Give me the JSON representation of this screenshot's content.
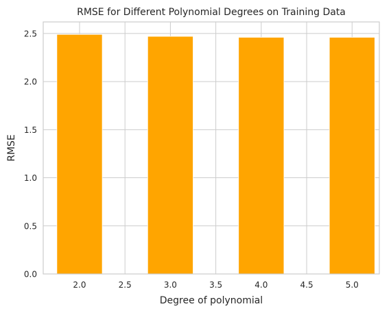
{
  "chart_data": {
    "type": "bar",
    "title": "RMSE for Different Polynomial Degrees on Training Data",
    "xlabel": "Degree of polynomial",
    "ylabel": "RMSE",
    "x": [
      2,
      3,
      4,
      5
    ],
    "values": [
      2.49,
      2.47,
      2.46,
      2.46
    ],
    "bar_width": 0.5,
    "xlim": [
      1.6,
      5.3
    ],
    "ylim": [
      0,
      2.62
    ],
    "xticks": [
      2.0,
      2.5,
      3.0,
      3.5,
      4.0,
      4.5,
      5.0
    ],
    "xtick_labels": [
      "2.0",
      "2.5",
      "3.0",
      "3.5",
      "4.0",
      "4.5",
      "5.0"
    ],
    "yticks": [
      0.0,
      0.5,
      1.0,
      1.5,
      2.0,
      2.5
    ],
    "ytick_labels": [
      "0.0",
      "0.5",
      "1.0",
      "1.5",
      "2.0",
      "2.5"
    ],
    "bar_color": "#FFA500",
    "grid": true,
    "legend": "none"
  }
}
